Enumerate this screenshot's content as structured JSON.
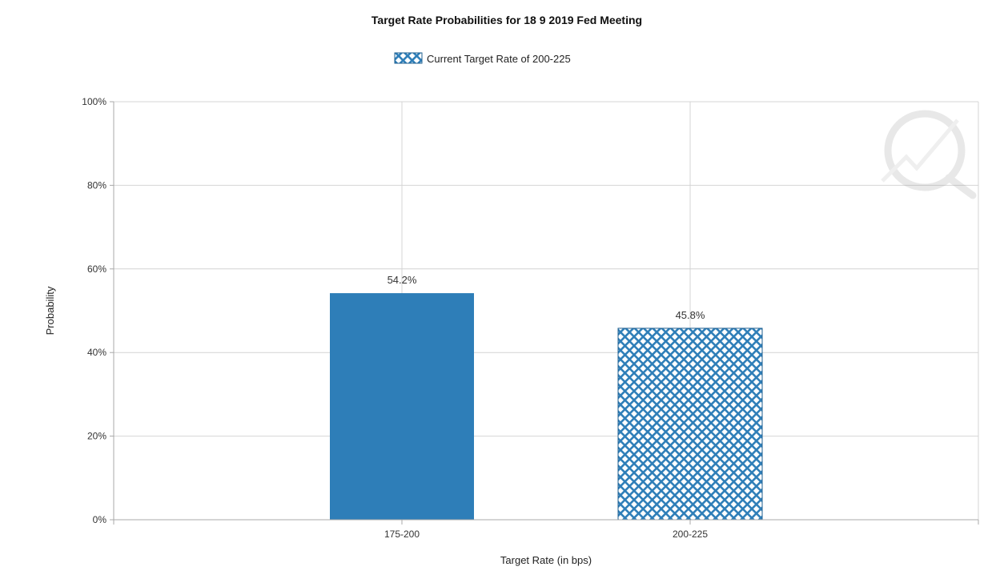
{
  "chart_data": {
    "type": "bar",
    "title": "Target Rate Probabilities for 18 9 2019 Fed Meeting",
    "legend": [
      "Current Target Rate of 200-225"
    ],
    "legend_position": "top-center",
    "xlabel": "Target Rate (in bps)",
    "ylabel": "Probability",
    "categories": [
      "175-200",
      "200-225"
    ],
    "values": [
      54.2,
      45.8
    ],
    "data_labels": [
      "54.2%",
      "45.8%"
    ],
    "ylim": [
      0,
      100
    ],
    "yticks": [
      0,
      20,
      40,
      60,
      80,
      100
    ],
    "ytick_labels": [
      "0%",
      "20%",
      "40%",
      "60%",
      "80%",
      "100%"
    ],
    "grid": true,
    "bar_styles": [
      "solid",
      "hatched"
    ],
    "colors": {
      "bar": "#2e7eb8",
      "hatch_fill": "#2e7eb8",
      "hatch_bg": "#ffffff",
      "grid": "#d4d4d4"
    }
  }
}
